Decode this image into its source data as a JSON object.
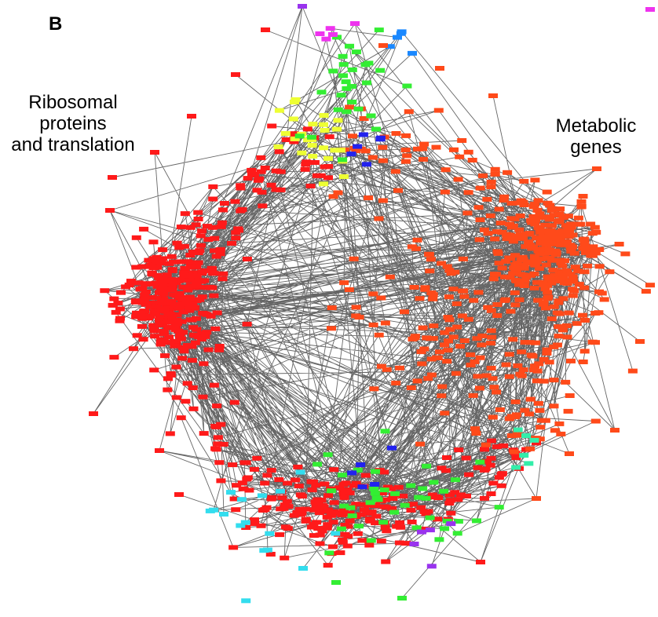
{
  "figure": {
    "panel_letter": "B",
    "cluster_labels": {
      "ribosomal": "Ribosomal\nproteins\nand translation",
      "metabolic": "Metabolic\ngenes"
    }
  },
  "colors": {
    "edge": "#666666",
    "ribosomal_cluster": "#ff1a1a",
    "metabolic_cluster": "#ff4a1a",
    "yellow_module": "#eeff33",
    "green_module": "#33ee33",
    "cyan_module": "#33ddee",
    "blue_module": "#2222ee",
    "azure_module": "#1a88ff",
    "purple_module": "#9933ee",
    "magenta_module": "#ee33ee",
    "teal_module": "#33eeaa",
    "background": "#ffffff"
  }
}
